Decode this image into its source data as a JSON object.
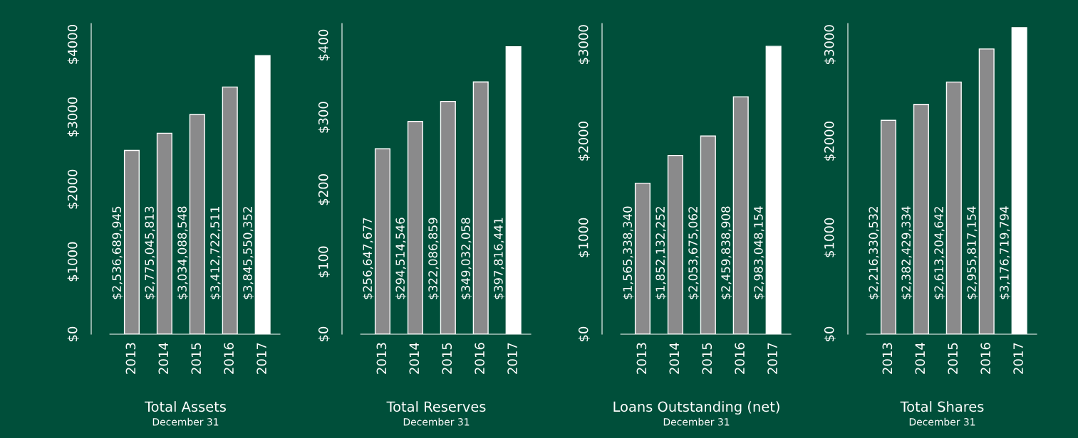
{
  "chart_data": [
    {
      "type": "bar",
      "title": "Total Assets",
      "subtitle": "December 31",
      "categories": [
        "2013",
        "2014",
        "2015",
        "2016",
        "2017"
      ],
      "values": [
        2537,
        2775,
        3034,
        3413,
        3846
      ],
      "colors": [
        "#8a8a8b",
        "#8a8a8b",
        "#8a8a8b",
        "#8a8a8b",
        "#ffffff"
      ],
      "annotations": [
        "$2,536,689,945",
        "$2,775,045,813",
        "$3,034,088,548",
        "$3,412,722,511",
        "$3,845,550,352"
      ],
      "ylim": [
        0,
        4290
      ],
      "yticks": [
        {
          "value": 0,
          "label": "$0"
        },
        {
          "value": 1000,
          "label": "$1000"
        },
        {
          "value": 2000,
          "label": "$2000"
        },
        {
          "value": 3000,
          "label": "$3000"
        },
        {
          "value": 4000,
          "label": "$4000"
        }
      ]
    },
    {
      "type": "bar",
      "title": "Total Reserves",
      "subtitle": "December 31",
      "categories": [
        "2013",
        "2014",
        "2015",
        "2016",
        "2017"
      ],
      "values": [
        256.6,
        294.5,
        322.1,
        349,
        397.8
      ],
      "colors": [
        "#8a8a8b",
        "#8a8a8b",
        "#8a8a8b",
        "#8a8a8b",
        "#ffffff"
      ],
      "annotations": [
        "$256,647,677",
        "$294,514,546",
        "$322,086,859",
        "$349,032,058",
        "$397,816,441"
      ],
      "ylim": [
        0,
        430
      ],
      "yticks": [
        {
          "value": 0,
          "label": "$0"
        },
        {
          "value": 100,
          "label": "$100"
        },
        {
          "value": 200,
          "label": "$200"
        },
        {
          "value": 300,
          "label": "$300"
        },
        {
          "value": 400,
          "label": "$400"
        }
      ]
    },
    {
      "type": "bar",
      "title": "Loans Outstanding (net)",
      "subtitle": "December 31",
      "categories": [
        "2013",
        "2014",
        "2015",
        "2016",
        "2017"
      ],
      "values": [
        1565,
        1852,
        2054,
        2460,
        2983
      ],
      "colors": [
        "#8a8a8b",
        "#8a8a8b",
        "#8a8a8b",
        "#8a8a8b",
        "#ffffff"
      ],
      "annotations": [
        "$1,565,338,340",
        "$1,852,132,252",
        "$2,053,675,062",
        "$2,459,838,908",
        "$2,983,048,154"
      ],
      "ylim": [
        0,
        3220
      ],
      "yticks": [
        {
          "value": 0,
          "label": "$0"
        },
        {
          "value": 1000,
          "label": "$1000"
        },
        {
          "value": 2000,
          "label": "$2000"
        },
        {
          "value": 3000,
          "label": "$3000"
        }
      ]
    },
    {
      "type": "bar",
      "title": "Total Shares",
      "subtitle": "December 31",
      "categories": [
        "2013",
        "2014",
        "2015",
        "2016",
        "2017"
      ],
      "values": [
        2216,
        2382,
        2613,
        2956,
        3177
      ],
      "colors": [
        "#8a8a8b",
        "#8a8a8b",
        "#8a8a8b",
        "#8a8a8b",
        "#ffffff"
      ],
      "annotations": [
        "$2,216,330,532",
        "$2,382,429,334",
        "$2,613,204,642",
        "$2,955,817,154",
        "$3,176,719,794"
      ],
      "ylim": [
        0,
        3220
      ],
      "yticks": [
        {
          "value": 0,
          "label": "$0"
        },
        {
          "value": 1000,
          "label": "$1000"
        },
        {
          "value": 2000,
          "label": "$2000"
        },
        {
          "value": 3000,
          "label": "$3000"
        }
      ]
    }
  ]
}
